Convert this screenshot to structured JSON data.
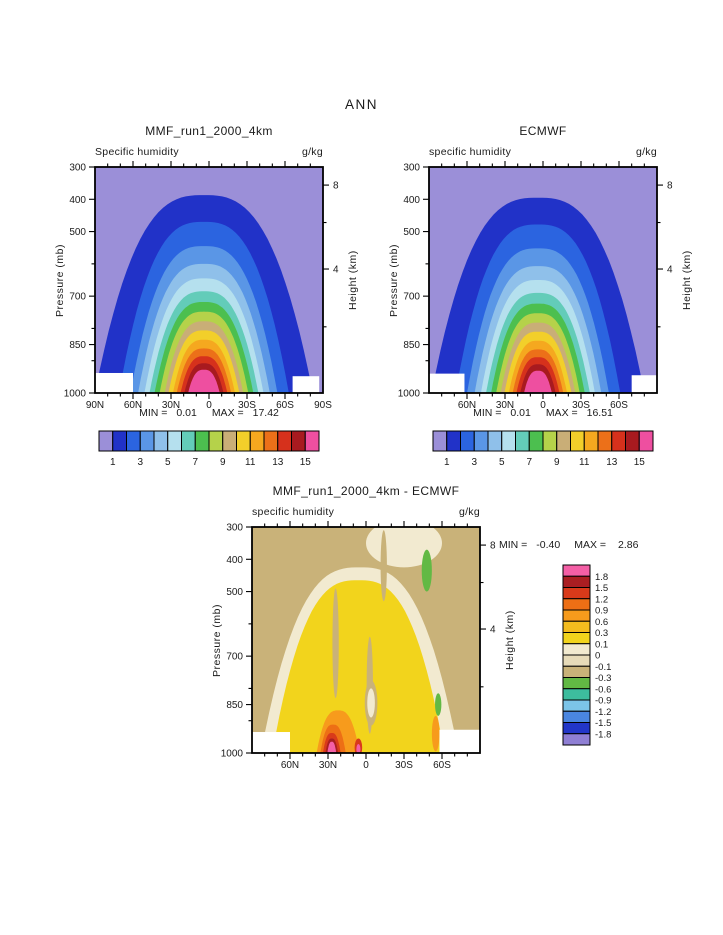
{
  "page": {
    "title": "ANN"
  },
  "axes": {
    "pressure_label": "Pressure (mb)",
    "height_label": "Height (km)",
    "pressure_ticks": [
      300,
      400,
      500,
      700,
      850,
      1000
    ],
    "pressure_minor_ticks": [
      600,
      800,
      900
    ],
    "height_ticks": [
      {
        "label": "8",
        "p": 356
      },
      {
        "label": "4",
        "p": 616
      }
    ],
    "height_minor_ticks_p": [
      472,
      795
    ],
    "lat_labels_full": [
      {
        "label": "90N",
        "lat": 90
      },
      {
        "label": "60N",
        "lat": 60
      },
      {
        "label": "30N",
        "lat": 30
      },
      {
        "label": "0",
        "lat": 0
      },
      {
        "label": "30S",
        "lat": -30
      },
      {
        "label": "60S",
        "lat": -60
      },
      {
        "label": "90S",
        "lat": -90
      }
    ],
    "lat_labels_inner": [
      {
        "label": "60N",
        "lat": 60
      },
      {
        "label": "30N",
        "lat": 30
      },
      {
        "label": "0",
        "lat": 0
      },
      {
        "label": "30S",
        "lat": -30
      },
      {
        "label": "60S",
        "lat": -60
      }
    ]
  },
  "colorbar_main": {
    "tick_labels": [
      "1",
      "3",
      "5",
      "7",
      "9",
      "11",
      "13",
      "15"
    ],
    "tick_values": [
      1,
      3,
      5,
      7,
      9,
      11,
      13,
      15
    ],
    "colors": [
      "#9b8fd8",
      "#2132c8",
      "#2b64e0",
      "#5a96e6",
      "#8fc0ea",
      "#b5e0ee",
      "#63ccb9",
      "#4cbf4f",
      "#b5d24a",
      "#c9ae77",
      "#f2cf2a",
      "#f5a81f",
      "#ec7019",
      "#d6311c",
      "#a81a1f",
      "#ee4fa0"
    ]
  },
  "colorbar_diff": {
    "tick_labels": [
      "1.8",
      "1.5",
      "1.2",
      "0.9",
      "0.6",
      "0.3",
      "0.1",
      "0",
      "-0.1",
      "-0.3",
      "-0.6",
      "-0.9",
      "-1.2",
      "-1.5",
      "-1.8"
    ],
    "colors_top_to_bottom": [
      "#f45fa6",
      "#aa1e22",
      "#d93a1a",
      "#ed6f15",
      "#f79b1c",
      "#f4bc1e",
      "#f2d41c",
      "#f2ead0",
      "#e7dbb9",
      "#c9b279",
      "#62b944",
      "#3dbd9e",
      "#7cc4e8",
      "#4a86e0",
      "#2236c8",
      "#8f7fd4"
    ]
  },
  "panels": {
    "left": {
      "title": "MMF_run1_2000_4km",
      "field_label": "Specific humidity",
      "units": "g/kg",
      "min_label": "MIN =",
      "min_value": "0.01",
      "max_label": "MAX =",
      "max_value": "17.42"
    },
    "right": {
      "title": "ECMWF",
      "field_label": "specific humidity",
      "units": "g/kg",
      "min_label": "MIN =",
      "min_value": "0.01",
      "max_label": "MAX =",
      "max_value": "16.51"
    },
    "diff": {
      "title": "MMF_run1_2000_4km - ECMWF",
      "field_label": "specific humidity",
      "units": "g/kg",
      "min_label": "MIN =",
      "min_value": "-0.40",
      "max_label": "MAX =",
      "max_value": "2.86"
    }
  },
  "chart_data": [
    {
      "type": "contour",
      "name": "MMF_run1_2000_4km",
      "field": "Specific humidity",
      "units": "g/kg",
      "x_axis": "latitude",
      "x_range": [
        90,
        -90
      ],
      "y_axis": "pressure_mb",
      "y_range": [
        300,
        1000
      ],
      "min": 0.01,
      "max": 17.42,
      "contour_interval": 1,
      "center_lat": 4,
      "shape_exponent": 2.8,
      "bands": [
        {
          "level": 1,
          "apex_mb": 387,
          "halfwidth_deg": 86
        },
        {
          "level": 2,
          "apex_mb": 470,
          "halfwidth_deg": 67
        },
        {
          "level": 3,
          "apex_mb": 545,
          "halfwidth_deg": 58
        },
        {
          "level": 4,
          "apex_mb": 600,
          "halfwidth_deg": 52
        },
        {
          "level": 5,
          "apex_mb": 645,
          "halfwidth_deg": 47
        },
        {
          "level": 6,
          "apex_mb": 685,
          "halfwidth_deg": 43
        },
        {
          "level": 7,
          "apex_mb": 718,
          "halfwidth_deg": 39
        },
        {
          "level": 8,
          "apex_mb": 748,
          "halfwidth_deg": 35
        },
        {
          "level": 9,
          "apex_mb": 778,
          "halfwidth_deg": 31
        },
        {
          "level": 10,
          "apex_mb": 806,
          "halfwidth_deg": 28
        },
        {
          "level": 11,
          "apex_mb": 835,
          "halfwidth_deg": 24.5
        },
        {
          "level": 12,
          "apex_mb": 862,
          "halfwidth_deg": 21.5
        },
        {
          "level": 13,
          "apex_mb": 886,
          "halfwidth_deg": 18.5
        },
        {
          "level": 14,
          "apex_mb": 908,
          "halfwidth_deg": 15.5
        },
        {
          "level": 15,
          "apex_mb": 928,
          "halfwidth_deg": 12.5
        },
        {
          "level": 16,
          "apex_mb": 947,
          "halfwidth_deg": 8
        }
      ],
      "surface_mask": [
        {
          "lat_from": 90,
          "lat_to": 60,
          "p_from": 938
        },
        {
          "lat_from": -66,
          "lat_to": -87,
          "p_from": 948
        }
      ]
    },
    {
      "type": "contour",
      "name": "ECMWF",
      "field": "specific humidity",
      "units": "g/kg",
      "x_axis": "latitude",
      "x_range": [
        90,
        -90
      ],
      "y_axis": "pressure_mb",
      "y_range": [
        300,
        1000
      ],
      "min": 0.01,
      "max": 16.51,
      "contour_interval": 1,
      "center_lat": 4,
      "shape_exponent": 2.8,
      "bands": [
        {
          "level": 1,
          "apex_mb": 395,
          "halfwidth_deg": 84
        },
        {
          "level": 2,
          "apex_mb": 478,
          "halfwidth_deg": 65
        },
        {
          "level": 3,
          "apex_mb": 552,
          "halfwidth_deg": 56
        },
        {
          "level": 4,
          "apex_mb": 607,
          "halfwidth_deg": 50
        },
        {
          "level": 5,
          "apex_mb": 650,
          "halfwidth_deg": 45
        },
        {
          "level": 6,
          "apex_mb": 690,
          "halfwidth_deg": 41
        },
        {
          "level": 7,
          "apex_mb": 723,
          "halfwidth_deg": 37
        },
        {
          "level": 8,
          "apex_mb": 753,
          "halfwidth_deg": 33
        },
        {
          "level": 9,
          "apex_mb": 782,
          "halfwidth_deg": 29.5
        },
        {
          "level": 10,
          "apex_mb": 810,
          "halfwidth_deg": 26.5
        },
        {
          "level": 11,
          "apex_mb": 838,
          "halfwidth_deg": 23
        },
        {
          "level": 12,
          "apex_mb": 865,
          "halfwidth_deg": 20
        },
        {
          "level": 13,
          "apex_mb": 889,
          "halfwidth_deg": 17
        },
        {
          "level": 14,
          "apex_mb": 911,
          "halfwidth_deg": 14
        },
        {
          "level": 15,
          "apex_mb": 931,
          "halfwidth_deg": 11
        },
        {
          "level": 16,
          "apex_mb": 950,
          "halfwidth_deg": 7.5
        }
      ],
      "surface_mask": [
        {
          "lat_from": 90,
          "lat_to": 62,
          "p_from": 940
        },
        {
          "lat_from": -70,
          "lat_to": -90,
          "p_from": 945
        }
      ]
    },
    {
      "type": "contour_difference",
      "name": "MMF_run1_2000_4km - ECMWF",
      "field": "specific humidity",
      "units": "g/kg",
      "x_axis": "latitude",
      "x_range": [
        90,
        -90
      ],
      "y_axis": "pressure_mb",
      "y_range": [
        300,
        1000
      ],
      "min": -0.4,
      "max": 2.86,
      "levels": [
        -1.8,
        -1.5,
        -1.2,
        -0.9,
        -0.6,
        -0.3,
        -0.1,
        0,
        0.1,
        0.3,
        0.6,
        0.9,
        1.2,
        1.5,
        1.8
      ],
      "background_value": -0.2,
      "shape_exponent": 2.8,
      "features": [
        {
          "shape": "dome",
          "value": 0.05,
          "center_lat": 5,
          "apex_mb": 425,
          "halfwidth_deg": 78
        },
        {
          "shape": "dome",
          "value": 0.2,
          "center_lat": 6,
          "apex_mb": 465,
          "halfwidth_deg": 68
        },
        {
          "shape": "ellipse",
          "value": 0.05,
          "center_lat": -30,
          "center_mb": 350,
          "r_lat": 30,
          "r_mb": 75
        },
        {
          "shape": "ellipse",
          "value": -0.2,
          "center_lat": -14,
          "center_mb": 420,
          "r_lat": 2.5,
          "r_mb": 110
        },
        {
          "shape": "ellipse",
          "value": -0.2,
          "center_lat": 24,
          "center_mb": 660,
          "r_lat": 2.5,
          "r_mb": 170
        },
        {
          "shape": "ellipse",
          "value": -0.2,
          "center_lat": -3,
          "center_mb": 790,
          "r_lat": 2.5,
          "r_mb": 150
        },
        {
          "shape": "ellipse",
          "value": -0.4,
          "center_lat": -48,
          "center_mb": 435,
          "r_lat": 4,
          "r_mb": 65
        },
        {
          "shape": "ellipse",
          "value": -0.4,
          "center_lat": -57,
          "center_mb": 850,
          "r_lat": 2.5,
          "r_mb": 35
        },
        {
          "shape": "ellipse",
          "value": -0.2,
          "center_lat": -4,
          "center_mb": 845,
          "r_lat": 5,
          "r_mb": 70
        },
        {
          "shape": "ellipse",
          "value": 0.05,
          "center_lat": -4,
          "center_mb": 845,
          "r_lat": 3,
          "r_mb": 45
        },
        {
          "shape": "dome",
          "value": 0.7,
          "center_lat": 22,
          "apex_mb": 868,
          "halfwidth_deg": 17
        },
        {
          "shape": "dome",
          "value": 1.0,
          "center_lat": 26,
          "apex_mb": 912,
          "halfwidth_deg": 10
        },
        {
          "shape": "dome",
          "value": 1.3,
          "center_lat": 27,
          "apex_mb": 938,
          "halfwidth_deg": 7
        },
        {
          "shape": "dome",
          "value": 1.6,
          "center_lat": 27,
          "apex_mb": 955,
          "halfwidth_deg": 5
        },
        {
          "shape": "dome",
          "value": 2.5,
          "center_lat": 27,
          "apex_mb": 965,
          "halfwidth_deg": 3.5
        },
        {
          "shape": "ellipse",
          "value": 1.3,
          "center_lat": 6,
          "center_mb": 983,
          "r_lat": 3,
          "r_mb": 28
        },
        {
          "shape": "ellipse",
          "value": 2.5,
          "center_lat": 6,
          "center_mb": 988,
          "r_lat": 1.6,
          "r_mb": 16
        },
        {
          "shape": "ellipse",
          "value": 0.7,
          "center_lat": -55,
          "center_mb": 940,
          "r_lat": 3,
          "r_mb": 55
        }
      ],
      "surface_mask": [
        {
          "lat_from": 90,
          "lat_to": 60,
          "p_from": 935
        },
        {
          "lat_from": -58,
          "lat_to": -90,
          "p_from": 928
        }
      ]
    }
  ]
}
